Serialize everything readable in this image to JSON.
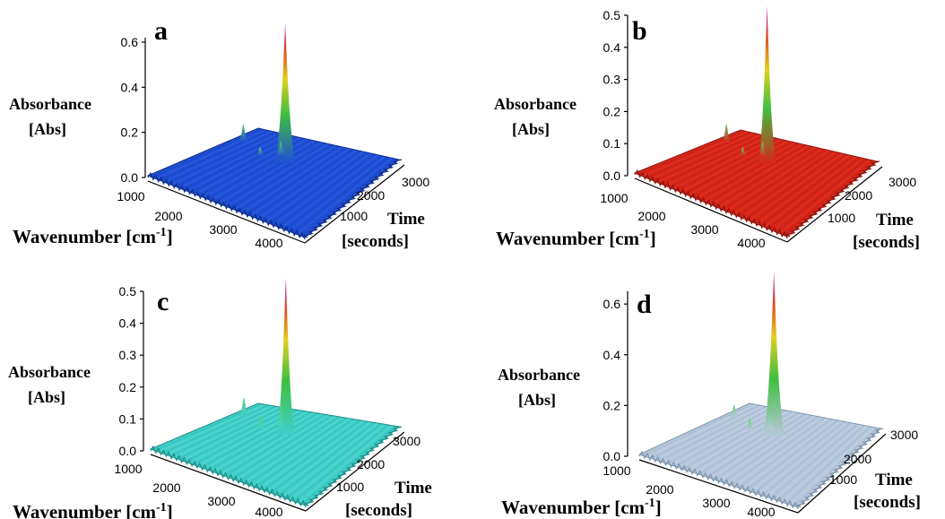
{
  "chart_data": [
    {
      "type": "surface",
      "panel_label": "a",
      "ylabel_line1": "Absorbance",
      "ylabel_line2": "[Abs]",
      "xlabel": "Wavenumber [cm",
      "xlabel_sup": "-1",
      "xlabel_end": "]",
      "zlabel_line1": "Time",
      "zlabel_line2": "[seconds]",
      "yticks": [
        "0.0",
        "0.2",
        "0.4",
        "0.6"
      ],
      "xticks": [
        "1000",
        "2000",
        "3000",
        "4000"
      ],
      "zticks": [
        "1000",
        "2000",
        "3000"
      ],
      "ylim": [
        0,
        0.62
      ],
      "colormap": "blue",
      "peaks": [
        {
          "wavenumber": 2350,
          "time": 2300,
          "absorbance": 0.62
        },
        {
          "wavenumber": 2100,
          "time": 2500,
          "absorbance": 0.07
        },
        {
          "wavenumber": 1050,
          "time": 2700,
          "absorbance": 0.08
        },
        {
          "wavenumber": 1750,
          "time": 2300,
          "absorbance": 0.04
        }
      ]
    },
    {
      "type": "surface",
      "panel_label": "b",
      "ylabel_line1": "Absorbance",
      "ylabel_line2": "[Abs]",
      "xlabel": "Wavenumber [cm",
      "xlabel_sup": "-1",
      "xlabel_end": "]",
      "zlabel_line1": "Time",
      "zlabel_line2": "[seconds]",
      "yticks": [
        "0.0",
        "0.1",
        "0.2",
        "0.3",
        "0.4",
        "0.5"
      ],
      "xticks": [
        "1000",
        "2000",
        "3000",
        "4000"
      ],
      "zticks": [
        "1000",
        "2000",
        "3000"
      ],
      "ylim": [
        0,
        0.5
      ],
      "colormap": "red",
      "peaks": [
        {
          "wavenumber": 2350,
          "time": 2300,
          "absorbance": 0.49
        },
        {
          "wavenumber": 2100,
          "time": 2500,
          "absorbance": 0.05
        },
        {
          "wavenumber": 1050,
          "time": 2700,
          "absorbance": 0.06
        },
        {
          "wavenumber": 1750,
          "time": 2300,
          "absorbance": 0.03
        }
      ]
    },
    {
      "type": "surface",
      "panel_label": "c",
      "ylabel_line1": "Absorbance",
      "ylabel_line2": "[Abs]",
      "xlabel": "Wavenumber [cm",
      "xlabel_sup": "-1",
      "xlabel_end": "]",
      "zlabel_line1": "Time",
      "zlabel_line2": "[seconds]",
      "yticks": [
        "0.0",
        "0.1",
        "0.2",
        "0.3",
        "0.4",
        "0.5"
      ],
      "xticks": [
        "1000",
        "2000",
        "3000",
        "4000"
      ],
      "zticks": [
        "1000",
        "2000",
        "3000"
      ],
      "ylim": [
        0,
        0.5
      ],
      "colormap": "cyan",
      "peaks": [
        {
          "wavenumber": 2350,
          "time": 2300,
          "absorbance": 0.49
        },
        {
          "wavenumber": 2100,
          "time": 2500,
          "absorbance": 0.08
        },
        {
          "wavenumber": 1050,
          "time": 2700,
          "absorbance": 0.06
        },
        {
          "wavenumber": 1750,
          "time": 2300,
          "absorbance": 0.04
        }
      ]
    },
    {
      "type": "surface",
      "panel_label": "d",
      "ylabel_line1": "Absorbance",
      "ylabel_line2": "[Abs]",
      "xlabel": "Wavenumber [cm",
      "xlabel_sup": "-1",
      "xlabel_end": "]",
      "zlabel_line1": "Time",
      "zlabel_line2": "[seconds]",
      "yticks": [
        "0.0",
        "0.2",
        "0.4",
        "0.6"
      ],
      "xticks": [
        "1000",
        "2000",
        "3000",
        "4000"
      ],
      "zticks": [
        "1000",
        "2000",
        "3000"
      ],
      "ylim": [
        0,
        0.65
      ],
      "colormap": "slate",
      "peaks": [
        {
          "wavenumber": 2350,
          "time": 2300,
          "absorbance": 0.65
        },
        {
          "wavenumber": 2100,
          "time": 2500,
          "absorbance": 0.1
        },
        {
          "wavenumber": 1050,
          "time": 2700,
          "absorbance": 0.05
        },
        {
          "wavenumber": 1750,
          "time": 2300,
          "absorbance": 0.05
        }
      ]
    }
  ]
}
